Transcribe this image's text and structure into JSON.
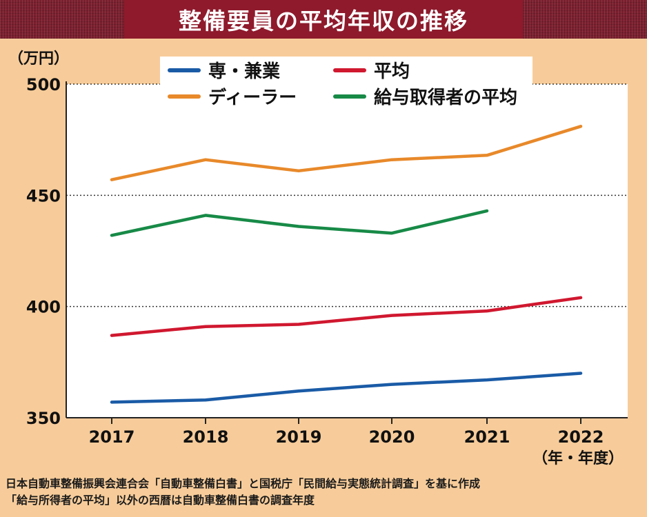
{
  "title": "整備要員の平均年収の推移",
  "y_unit": "（万円）",
  "x_unit": "（年・年度）",
  "footnotes": [
    "日本自動車整備振興会連合会「自動車整備白書」と国税庁「民間給与実態統計調査」を基に作成",
    "「給与所得者の平均」以外の西暦は自動車整備白書の調査年度"
  ],
  "colors": {
    "background": "#f7cc9a",
    "title_bg": "#8e1a2c"
  },
  "chart_data": {
    "type": "line",
    "title": "整備要員の平均年収の推移",
    "ylabel": "（万円）",
    "xlabel": "（年・年度）",
    "x": [
      "2017",
      "2018",
      "2019",
      "2020",
      "2021",
      "2022"
    ],
    "ylim": [
      350,
      500
    ],
    "yticks": [
      350,
      400,
      450,
      500
    ],
    "grid": "horizontal-dotted",
    "legend_position": "top",
    "series": [
      {
        "name": "専・兼業",
        "color": "#1a5ba6",
        "values": [
          357,
          358,
          362,
          365,
          367,
          370
        ]
      },
      {
        "name": "ディーラー",
        "color": "#e8892a",
        "values": [
          457,
          466,
          461,
          466,
          468,
          481
        ]
      },
      {
        "name": "平均",
        "color": "#d0182f",
        "values": [
          387,
          391,
          392,
          396,
          398,
          404
        ]
      },
      {
        "name": "給与取得者の平均",
        "color": "#178a47",
        "values": [
          432,
          441,
          436,
          433,
          443,
          null
        ]
      }
    ]
  }
}
